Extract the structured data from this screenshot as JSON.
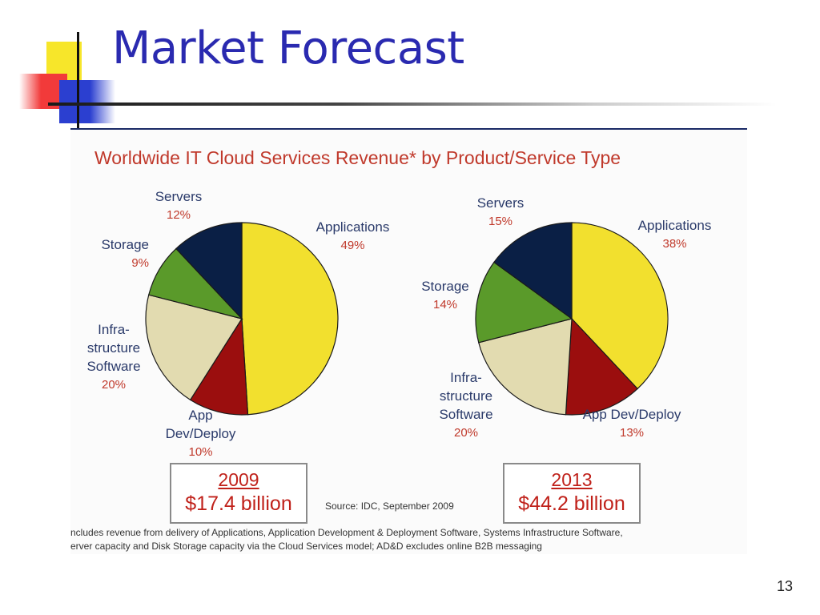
{
  "slide": {
    "title": "Market Forecast",
    "page_number": "13"
  },
  "figure": {
    "title": "Worldwide IT Cloud Services Revenue* by Product/Service Type",
    "source": "Source: IDC, September 2009",
    "footnote_line1": "ncludes revenue from delivery of Applications, Application Development & Deployment Software, Systems Infrastructure Software,",
    "footnote_line2": "erver capacity and Disk Storage capacity via the Cloud Services model; AD&D excludes online B2B messaging"
  },
  "colors": {
    "Applications": "#f2e02e",
    "App Dev/Deploy": "#9b0e0e",
    "Infrastructure Software": "#e2dbb0",
    "Storage": "#5a9a2a",
    "Servers": "#0a1f45"
  },
  "chart_data": [
    {
      "type": "pie",
      "title": "2009",
      "total_label": "$17.4 billion",
      "labels": [
        "Applications",
        "App Dev/Deploy",
        "Infrastructure Software",
        "Storage",
        "Servers"
      ],
      "label_text": [
        "Applications",
        "App Dev/Deploy",
        "Infra-structure Software",
        "Storage",
        "Servers"
      ],
      "values": [
        49,
        10,
        20,
        9,
        12
      ],
      "value_labels": [
        "49%",
        "10%",
        "20%",
        "9%",
        "12%"
      ]
    },
    {
      "type": "pie",
      "title": "2013",
      "total_label": "$44.2 billion",
      "labels": [
        "Applications",
        "App Dev/Deploy",
        "Infrastructure Software",
        "Storage",
        "Servers"
      ],
      "label_text": [
        "Applications",
        "App Dev/Deploy",
        "Infra-structure Software",
        "Storage",
        "Servers"
      ],
      "values": [
        38,
        13,
        20,
        14,
        15
      ],
      "value_labels": [
        "38%",
        "13%",
        "20%",
        "14%",
        "15%"
      ]
    }
  ]
}
